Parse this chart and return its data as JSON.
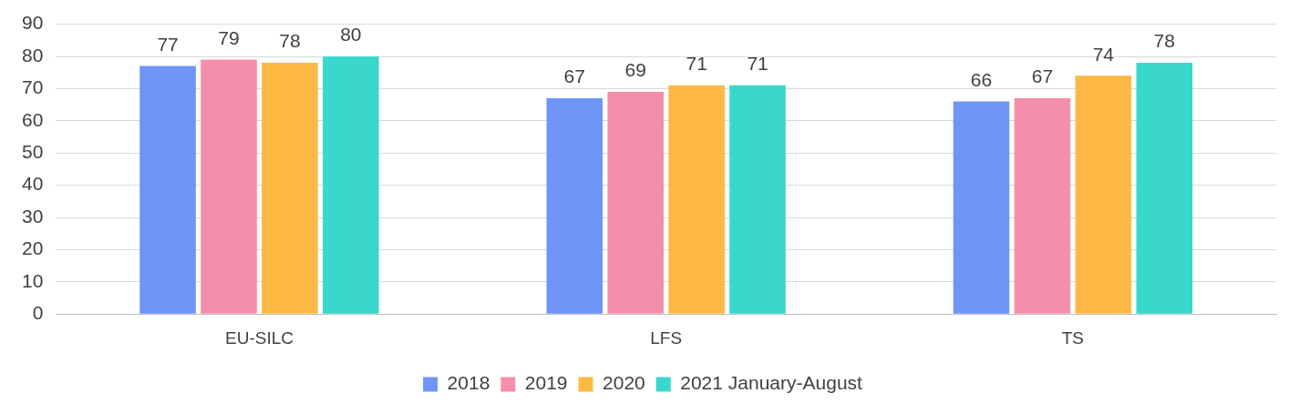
{
  "chart_data": {
    "type": "bar",
    "categories": [
      "EU-SILC",
      "LFS",
      "TS"
    ],
    "series": [
      {
        "name": "2018",
        "color": "#6e95f7",
        "values": [
          77,
          67,
          66
        ]
      },
      {
        "name": "2019",
        "color": "#f48fab",
        "values": [
          79,
          69,
          67
        ]
      },
      {
        "name": "2020",
        "color": "#fdb944",
        "values": [
          78,
          71,
          74
        ]
      },
      {
        "name": "2021 January-August",
        "color": "#3ad8cc",
        "values": [
          80,
          71,
          78
        ]
      }
    ],
    "ylim": [
      0,
      90
    ],
    "yticks": [
      0,
      10,
      20,
      30,
      40,
      50,
      60,
      70,
      80,
      90
    ],
    "grid": "y",
    "legend": "bottom",
    "data_labels": true
  }
}
